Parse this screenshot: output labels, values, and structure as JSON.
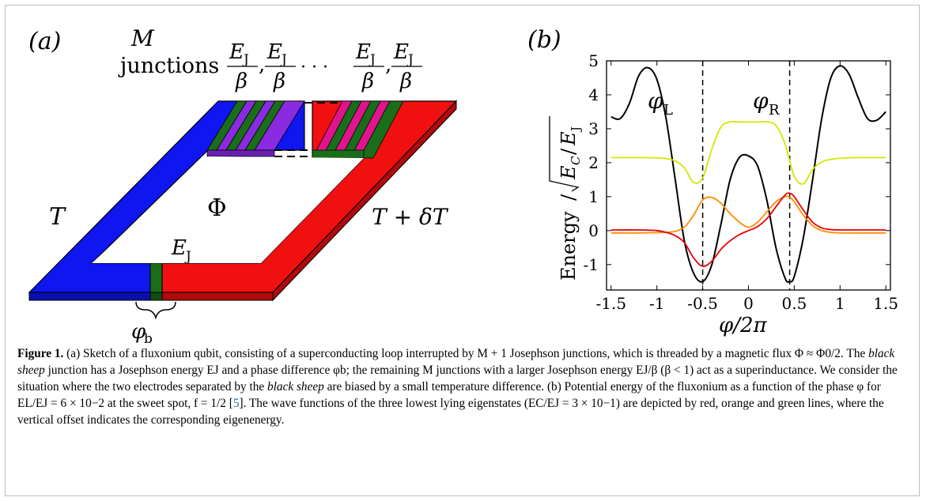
{
  "panel_a": {
    "label": "(a)",
    "m_junctions_label_line1": "M",
    "m_junctions_label_line2": "junctions",
    "ej_fraction_num": "E",
    "ej_fraction_sub": "J",
    "ej_fraction_den": "β",
    "comma": ",",
    "ellipsis": "· · ·",
    "flux_label": "Φ",
    "left_temp_label": "T",
    "right_temp_label": "T + δT",
    "black_sheep_label_E": "E",
    "black_sheep_label_sub": "J",
    "phase_label": "φ",
    "phase_label_sub": "b",
    "colors": {
      "left_electrode": "#0f16f0",
      "right_electrode": "#f01010",
      "junction_green": "#1a6e1a",
      "junction_purple": "#8a2be2",
      "junction_magenta": "#e0148c"
    }
  },
  "panel_b": {
    "label": "(b)",
    "ylabel_prefix": "Energy",
    "ylabel_frac": "E",
    "ylabel_frac_sub_num": "C",
    "ylabel_frac_den": "E",
    "ylabel_frac_sub_den": "J",
    "xlabel": "φ/2π",
    "marker_left": "φ",
    "marker_left_sub": "L",
    "marker_right": "φ",
    "marker_right_sub": "R"
  },
  "chart_data": {
    "type": "line",
    "xlabel": "φ/2π",
    "ylabel": "Energy/√(E_C/E_J)",
    "xlim": [
      -1.55,
      1.55
    ],
    "ylim": [
      -1.75,
      5.0
    ],
    "x_ticks": [
      "-1.5",
      "-1",
      "-0.5",
      "0",
      "0.5",
      "1",
      "1.5"
    ],
    "x_tick_values": [
      -1.5,
      -1.0,
      -0.5,
      0,
      0.5,
      1.0,
      1.5
    ],
    "y_ticks": [
      "-1",
      "0",
      "1",
      "2",
      "3",
      "4",
      "5"
    ],
    "y_tick_values": [
      -1,
      0,
      1,
      2,
      3,
      4,
      5
    ],
    "vlines": [
      -0.5,
      0.45
    ],
    "series": [
      {
        "color": "#000000",
        "x": [
          -1.5,
          -1.4,
          -1.3,
          -1.2,
          -1.1,
          -1.0,
          -0.9,
          -0.8,
          -0.7,
          -0.6,
          -0.5,
          -0.4,
          -0.3,
          -0.2,
          -0.1,
          0,
          0.1,
          0.2,
          0.3,
          0.4,
          0.45,
          0.5,
          0.6,
          0.7,
          0.8,
          0.9,
          1.0,
          1.1,
          1.2,
          1.3,
          1.4,
          1.5
        ],
        "y": [
          3.35,
          3.3,
          3.75,
          4.55,
          4.8,
          4.45,
          3.3,
          1.5,
          -0.3,
          -1.25,
          -1.5,
          -1.0,
          0.2,
          1.5,
          2.15,
          2.2,
          1.9,
          0.9,
          -0.5,
          -1.4,
          -1.5,
          -1.35,
          -0.2,
          1.5,
          3.3,
          4.5,
          4.85,
          4.6,
          3.9,
          3.3,
          3.25,
          3.5
        ]
      },
      {
        "color": "#d4e600",
        "x": [
          -1.5,
          -1.2,
          -1.0,
          -0.9,
          -0.8,
          -0.7,
          -0.6,
          -0.5,
          -0.4,
          -0.3,
          -0.2,
          -0.1,
          0,
          0.1,
          0.2,
          0.3,
          0.4,
          0.5,
          0.6,
          0.7,
          0.8,
          0.9,
          1.0,
          1.2,
          1.5
        ],
        "y": [
          2.15,
          2.15,
          2.14,
          2.12,
          2.05,
          1.85,
          1.42,
          1.55,
          2.4,
          3.05,
          3.2,
          3.2,
          3.2,
          3.2,
          3.2,
          3.1,
          2.55,
          1.6,
          1.38,
          1.8,
          2.02,
          2.1,
          2.13,
          2.15,
          2.15
        ]
      },
      {
        "color": "#ff8c00",
        "x": [
          -1.5,
          -1.2,
          -1.0,
          -0.9,
          -0.8,
          -0.7,
          -0.6,
          -0.5,
          -0.4,
          -0.3,
          -0.2,
          -0.1,
          0,
          0.1,
          0.2,
          0.3,
          0.4,
          0.45,
          0.5,
          0.6,
          0.7,
          0.8,
          0.9,
          1.0,
          1.2,
          1.5
        ],
        "y": [
          -0.07,
          -0.07,
          -0.06,
          -0.05,
          -0.02,
          0.1,
          0.45,
          0.9,
          0.98,
          0.8,
          0.5,
          0.25,
          0.1,
          0.25,
          0.55,
          0.85,
          1.0,
          0.98,
          0.85,
          0.45,
          0.15,
          0.0,
          -0.05,
          -0.07,
          -0.07,
          -0.07
        ]
      },
      {
        "color": "#e60000",
        "x": [
          -1.5,
          -1.2,
          -1.0,
          -0.9,
          -0.8,
          -0.7,
          -0.6,
          -0.5,
          -0.4,
          -0.3,
          -0.2,
          -0.1,
          0,
          0.1,
          0.2,
          0.3,
          0.4,
          0.45,
          0.5,
          0.6,
          0.7,
          0.8,
          0.9,
          1.0,
          1.2,
          1.5
        ],
        "y": [
          0.02,
          0.02,
          0.0,
          -0.05,
          -0.15,
          -0.35,
          -0.8,
          -1.05,
          -0.9,
          -0.55,
          -0.3,
          -0.12,
          0.0,
          0.12,
          0.35,
          0.7,
          1.05,
          1.1,
          1.0,
          0.6,
          0.25,
          0.08,
          0.03,
          0.02,
          0.02,
          0.02
        ]
      }
    ]
  },
  "caption": {
    "fig_label": "Figure 1.",
    "seg1": " (a) Sketch of a fluxonium qubit, consisting of a superconducting loop interrupted by M + 1 Josephson junctions, which is threaded by a magnetic flux Φ ≈ Φ0/2. The ",
    "black_sheep_1": "black sheep",
    "seg2": " junction has a Josephson energy EJ and a phase difference φb; the remaining M junctions with a larger Josephson energy EJ/β (β < 1) act as a superinductance. We consider the situation where the two electrodes separated by the ",
    "black_sheep_2": "black sheep",
    "seg3": " are biased by a small temperature difference. (b) Potential energy of the fluxonium as a function of the phase φ for EL/EJ = 6 × 10−2 at the sweet spot, f = 1/2 [",
    "ref": "5",
    "seg4": "]. The wave functions of the three lowest lying eigenstates (EC/EJ = 3 × 10−1) are depicted by red, orange and green lines, where the vertical offset indicates the corresponding eigenenergy."
  }
}
